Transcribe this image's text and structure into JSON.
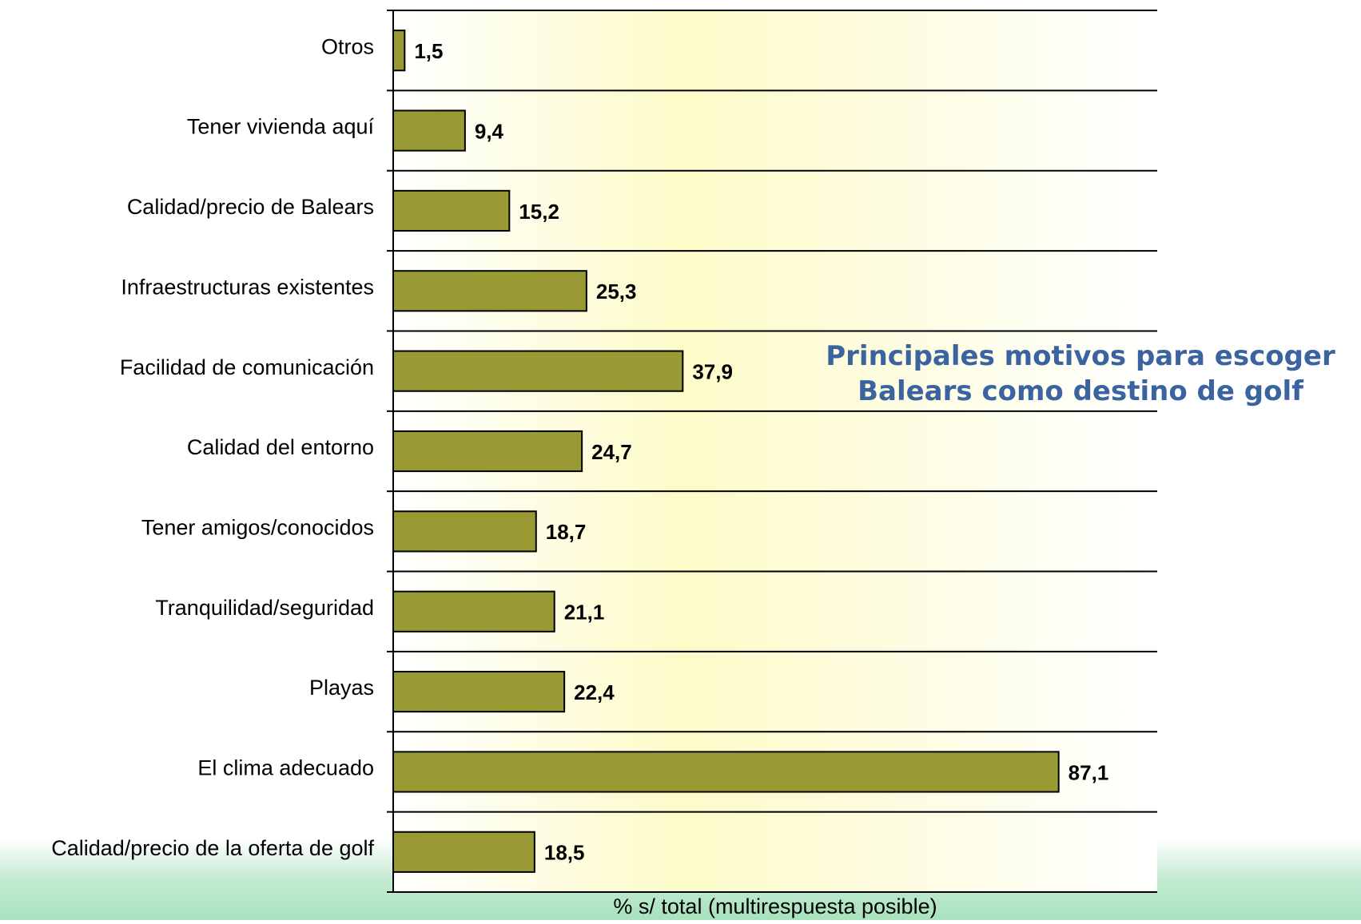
{
  "chart_data": {
    "type": "bar",
    "orientation": "horizontal",
    "title": [
      "Principales motivos para escoger",
      "Balears como destino de golf"
    ],
    "x_label": "% s/ total (multirespuesta posible)",
    "categories": [
      "Otros",
      "Tener vivienda aquí",
      "Calidad/precio de Balears",
      "Infraestructuras existentes",
      "Facilidad de comunicación",
      "Calidad del entorno",
      "Tener amigos/conocidos",
      "Tranquilidad/seguridad",
      "Playas",
      "El clima adecuado",
      "Calidad/precio de la oferta de golf"
    ],
    "values": [
      1.5,
      9.4,
      15.2,
      25.3,
      37.9,
      24.7,
      18.7,
      21.1,
      22.4,
      87.1,
      18.5
    ],
    "value_labels": [
      "1,5",
      "9,4",
      "15,2",
      "25,3",
      "37,9",
      "24,7",
      "18,7",
      "21,1",
      "22,4",
      "87,1",
      "18,5"
    ],
    "color": "#9a9a35",
    "xlim": [
      0,
      100
    ]
  }
}
